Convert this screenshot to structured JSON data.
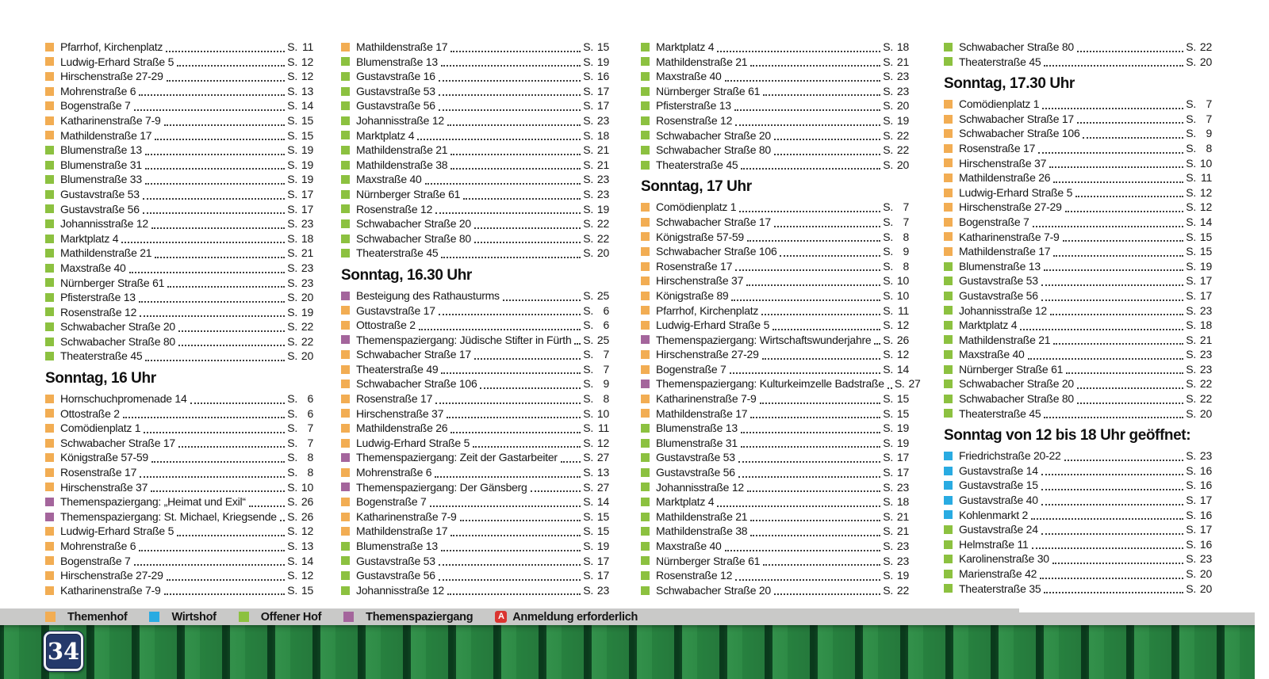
{
  "page_number": "34",
  "page_prefix": "S.",
  "category_colors": {
    "themenhof": "#f2ad53",
    "wirtshof": "#29abe2",
    "offener_hof": "#8cc140",
    "themenspaziergang": "#a4659c",
    "anmeldung": "#da3430"
  },
  "legend": [
    {
      "type": "o",
      "label": "Themenhof"
    },
    {
      "type": "b",
      "label": "Wirtshof"
    },
    {
      "type": "g",
      "label": "Offener Hof"
    },
    {
      "type": "p",
      "label": "Themenspaziergang"
    },
    {
      "type": "anmeldung",
      "icon_letter": "A",
      "label": "Anmeldung erforderlich"
    }
  ],
  "columns": [
    {
      "sections": [
        {
          "heading": "",
          "entries": [
            {
              "t": "o",
              "label": "Pfarrhof, Kirchenplatz",
              "page": "11"
            },
            {
              "t": "o",
              "label": "Ludwig-Erhard Straße 5",
              "page": "12"
            },
            {
              "t": "o",
              "label": "Hirschenstraße 27-29",
              "page": "12"
            },
            {
              "t": "o",
              "label": "Mohrenstraße 6",
              "page": "13"
            },
            {
              "t": "o",
              "label": "Bogenstraße 7",
              "page": "14"
            },
            {
              "t": "o",
              "label": "Katharinenstraße 7-9",
              "page": "15"
            },
            {
              "t": "o",
              "label": "Mathildenstraße 17",
              "page": "15"
            },
            {
              "t": "g",
              "label": "Blumenstraße 13",
              "page": "19"
            },
            {
              "t": "g",
              "label": "Blumenstraße 31",
              "page": "19"
            },
            {
              "t": "g",
              "label": "Blumenstraße 33",
              "page": "19"
            },
            {
              "t": "g",
              "label": "Gustavstraße 53",
              "page": "17"
            },
            {
              "t": "g",
              "label": "Gustavstraße 56",
              "page": "17"
            },
            {
              "t": "g",
              "label": "Johannisstraße 12",
              "page": "23"
            },
            {
              "t": "g",
              "label": "Marktplatz 4",
              "page": "18"
            },
            {
              "t": "g",
              "label": "Mathildenstraße 21",
              "page": "21"
            },
            {
              "t": "g",
              "label": "Maxstraße 40",
              "page": "23"
            },
            {
              "t": "g",
              "label": "Nürnberger Straße 61",
              "page": "23"
            },
            {
              "t": "g",
              "label": "Pfisterstraße 13",
              "page": "20"
            },
            {
              "t": "g",
              "label": "Rosenstraße 12",
              "page": "19"
            },
            {
              "t": "g",
              "label": "Schwabacher Straße 20",
              "page": "22"
            },
            {
              "t": "g",
              "label": "Schwabacher Straße 80",
              "page": "22"
            },
            {
              "t": "g",
              "label": "Theaterstraße 45",
              "page": "20"
            }
          ]
        },
        {
          "heading": "Sonntag, 16 Uhr",
          "entries": [
            {
              "t": "o",
              "label": "Hornschuchpromenade 14",
              "page": "6"
            },
            {
              "t": "o",
              "label": "Ottostraße 2",
              "page": "6"
            },
            {
              "t": "o",
              "label": "Comödienplatz 1",
              "page": "7"
            },
            {
              "t": "o",
              "label": "Schwabacher Straße 17",
              "page": "7"
            },
            {
              "t": "o",
              "label": "Königstraße 57-59",
              "page": "8"
            },
            {
              "t": "o",
              "label": "Rosenstraße 17",
              "page": "8"
            },
            {
              "t": "o",
              "label": "Hirschenstraße 37",
              "page": "10"
            },
            {
              "t": "p",
              "label": "Themenspaziergang: „Heimat und Exil“",
              "page": "26"
            },
            {
              "t": "p",
              "label": "Themenspaziergang: St. Michael, Kriegsende",
              "page": "26"
            },
            {
              "t": "o",
              "label": "Ludwig-Erhard Straße 5",
              "page": "12"
            },
            {
              "t": "o",
              "label": "Mohrenstraße 6",
              "page": "13"
            },
            {
              "t": "o",
              "label": "Bogenstraße 7",
              "page": "14"
            },
            {
              "t": "o",
              "label": "Hirschenstraße 27-29",
              "page": "12"
            },
            {
              "t": "o",
              "label": "Katharinenstraße 7-9",
              "page": "15"
            }
          ]
        }
      ]
    },
    {
      "sections": [
        {
          "heading": "",
          "entries": [
            {
              "t": "o",
              "label": "Mathildenstraße 17",
              "page": "15"
            },
            {
              "t": "g",
              "label": "Blumenstraße 13",
              "page": "19"
            },
            {
              "t": "g",
              "label": "Gustavstraße 16",
              "page": "16"
            },
            {
              "t": "g",
              "label": "Gustavstraße 53",
              "page": "17"
            },
            {
              "t": "g",
              "label": "Gustavstraße 56",
              "page": "17"
            },
            {
              "t": "g",
              "label": "Johannisstraße 12",
              "page": "23"
            },
            {
              "t": "g",
              "label": "Marktplatz 4",
              "page": "18"
            },
            {
              "t": "g",
              "label": "Mathildenstraße 21",
              "page": "21"
            },
            {
              "t": "g",
              "label": "Mathildenstraße 38",
              "page": "21"
            },
            {
              "t": "g",
              "label": "Maxstraße 40",
              "page": "23"
            },
            {
              "t": "g",
              "label": "Nürnberger Straße 61",
              "page": "23"
            },
            {
              "t": "g",
              "label": "Rosenstraße 12",
              "page": "19"
            },
            {
              "t": "g",
              "label": "Schwabacher Straße 20",
              "page": "22"
            },
            {
              "t": "g",
              "label": "Schwabacher Straße 80",
              "page": "22"
            },
            {
              "t": "g",
              "label": "Theaterstraße 45",
              "page": "20"
            }
          ]
        },
        {
          "heading": "Sonntag, 16.30 Uhr",
          "entries": [
            {
              "t": "p",
              "label": "Besteigung des Rathausturms",
              "page": "25"
            },
            {
              "t": "o",
              "label": "Gustavstraße 17",
              "page": "6"
            },
            {
              "t": "o",
              "label": "Ottostraße 2",
              "page": "6"
            },
            {
              "t": "p",
              "label": "Themenspaziergang: Jüdische Stifter in Fürth",
              "page": "25"
            },
            {
              "t": "o",
              "label": "Schwabacher Straße 17",
              "page": "7"
            },
            {
              "t": "o",
              "label": "Theaterstraße 49",
              "page": "7"
            },
            {
              "t": "o",
              "label": "Schwabacher Straße 106",
              "page": "9"
            },
            {
              "t": "o",
              "label": "Rosenstraße 17",
              "page": "8"
            },
            {
              "t": "o",
              "label": "Hirschenstraße 37",
              "page": "10"
            },
            {
              "t": "o",
              "label": "Mathildenstraße 26",
              "page": "11"
            },
            {
              "t": "o",
              "label": "Ludwig-Erhard Straße 5",
              "page": "12"
            },
            {
              "t": "p",
              "label": "Themenspaziergang: Zeit der Gastarbeiter",
              "page": "27"
            },
            {
              "t": "o",
              "label": "Mohrenstraße 6",
              "page": "13"
            },
            {
              "t": "p",
              "label": "Themenspaziergang: Der Gänsberg",
              "page": "27"
            },
            {
              "t": "o",
              "label": "Bogenstraße 7",
              "page": "14"
            },
            {
              "t": "o",
              "label": "Katharinenstraße 7-9",
              "page": "15"
            },
            {
              "t": "o",
              "label": "Mathildenstraße 17",
              "page": "15"
            },
            {
              "t": "g",
              "label": "Blumenstraße 13",
              "page": "19"
            },
            {
              "t": "g",
              "label": "Gustavstraße 53",
              "page": "17"
            },
            {
              "t": "g",
              "label": "Gustavstraße 56",
              "page": "17"
            },
            {
              "t": "g",
              "label": "Johannisstraße 12",
              "page": "23"
            }
          ]
        }
      ]
    },
    {
      "sections": [
        {
          "heading": "",
          "entries": [
            {
              "t": "g",
              "label": "Marktplatz 4",
              "page": "18"
            },
            {
              "t": "g",
              "label": "Mathildenstraße 21",
              "page": "21"
            },
            {
              "t": "g",
              "label": "Maxstraße 40",
              "page": "23"
            },
            {
              "t": "g",
              "label": "Nürnberger Straße 61",
              "page": "23"
            },
            {
              "t": "g",
              "label": "Pfisterstraße 13",
              "page": "20"
            },
            {
              "t": "g",
              "label": "Rosenstraße 12",
              "page": "19"
            },
            {
              "t": "g",
              "label": "Schwabacher Straße 20",
              "page": "22"
            },
            {
              "t": "g",
              "label": "Schwabacher Straße 80",
              "page": "22"
            },
            {
              "t": "g",
              "label": "Theaterstraße 45",
              "page": "20"
            }
          ]
        },
        {
          "heading": "Sonntag, 17 Uhr",
          "entries": [
            {
              "t": "o",
              "label": "Comödienplatz 1",
              "page": "7"
            },
            {
              "t": "o",
              "label": "Schwabacher Straße 17",
              "page": "7"
            },
            {
              "t": "o",
              "label": "Königstraße 57-59",
              "page": "8"
            },
            {
              "t": "o",
              "label": "Schwabacher Straße 106",
              "page": "9"
            },
            {
              "t": "o",
              "label": "Rosenstraße 17",
              "page": "8"
            },
            {
              "t": "o",
              "label": "Hirschenstraße 37",
              "page": "10"
            },
            {
              "t": "o",
              "label": "Königstraße 89",
              "page": "10"
            },
            {
              "t": "o",
              "label": "Pfarrhof, Kirchenplatz",
              "page": "11"
            },
            {
              "t": "o",
              "label": "Ludwig-Erhard Straße 5",
              "page": "12"
            },
            {
              "t": "p",
              "label": "Themenspaziergang: Wirtschaftswunderjahre",
              "page": "26"
            },
            {
              "t": "o",
              "label": "Hirschenstraße 27-29",
              "page": "12"
            },
            {
              "t": "o",
              "label": "Bogenstraße 7",
              "page": "14"
            },
            {
              "t": "p",
              "label": "Themenspaziergang: Kulturkeimzelle Badstraße",
              "page": "27"
            },
            {
              "t": "o",
              "label": "Katharinenstraße 7-9",
              "page": "15"
            },
            {
              "t": "o",
              "label": "Mathildenstraße 17",
              "page": "15"
            },
            {
              "t": "g",
              "label": "Blumenstraße 13",
              "page": "19"
            },
            {
              "t": "g",
              "label": "Blumenstraße 31",
              "page": "19"
            },
            {
              "t": "g",
              "label": "Gustavstraße 53",
              "page": "17"
            },
            {
              "t": "g",
              "label": "Gustavstraße 56",
              "page": "17"
            },
            {
              "t": "g",
              "label": "Johannisstraße 12",
              "page": "23"
            },
            {
              "t": "g",
              "label": "Marktplatz 4",
              "page": "18"
            },
            {
              "t": "g",
              "label": "Mathildenstraße 21",
              "page": "21"
            },
            {
              "t": "g",
              "label": "Mathildenstraße 38",
              "page": "21"
            },
            {
              "t": "g",
              "label": "Maxstraße 40",
              "page": "23"
            },
            {
              "t": "g",
              "label": "Nürnberger Straße 61",
              "page": "23"
            },
            {
              "t": "g",
              "label": "Rosenstraße 12",
              "page": "19"
            },
            {
              "t": "g",
              "label": "Schwabacher Straße 20",
              "page": "22"
            }
          ]
        }
      ]
    },
    {
      "sections": [
        {
          "heading": "",
          "entries": [
            {
              "t": "g",
              "label": "Schwabacher Straße 80",
              "page": "22"
            },
            {
              "t": "g",
              "label": "Theaterstraße 45",
              "page": "20"
            }
          ]
        },
        {
          "heading": "Sonntag, 17.30 Uhr",
          "entries": [
            {
              "t": "o",
              "label": "Comödienplatz 1",
              "page": "7"
            },
            {
              "t": "o",
              "label": "Schwabacher Straße 17",
              "page": "7"
            },
            {
              "t": "o",
              "label": "Schwabacher Straße 106",
              "page": "9"
            },
            {
              "t": "o",
              "label": "Rosenstraße 17",
              "page": "8"
            },
            {
              "t": "o",
              "label": "Hirschenstraße 37",
              "page": "10"
            },
            {
              "t": "o",
              "label": "Mathildenstraße 26",
              "page": "11"
            },
            {
              "t": "o",
              "label": "Ludwig-Erhard Straße 5",
              "page": "12"
            },
            {
              "t": "o",
              "label": "Hirschenstraße 27-29",
              "page": "12"
            },
            {
              "t": "o",
              "label": "Bogenstraße 7",
              "page": "14"
            },
            {
              "t": "o",
              "label": "Katharinenstraße 7-9",
              "page": "15"
            },
            {
              "t": "o",
              "label": "Mathildenstraße 17",
              "page": "15"
            },
            {
              "t": "g",
              "label": "Blumenstraße 13",
              "page": "19"
            },
            {
              "t": "g",
              "label": "Gustavstraße 53",
              "page": "17"
            },
            {
              "t": "g",
              "label": "Gustavstraße 56",
              "page": "17"
            },
            {
              "t": "g",
              "label": "Johannisstraße 12",
              "page": "23"
            },
            {
              "t": "g",
              "label": "Marktplatz 4",
              "page": "18"
            },
            {
              "t": "g",
              "label": "Mathildenstraße 21",
              "page": "21"
            },
            {
              "t": "g",
              "label": "Maxstraße 40",
              "page": "23"
            },
            {
              "t": "g",
              "label": "Nürnberger Straße 61",
              "page": "23"
            },
            {
              "t": "g",
              "label": "Schwabacher Straße 20",
              "page": "22"
            },
            {
              "t": "g",
              "label": "Schwabacher Straße 80",
              "page": "22"
            },
            {
              "t": "g",
              "label": "Theaterstraße 45",
              "page": "20"
            }
          ]
        },
        {
          "heading": "Sonntag von 12 bis 18 Uhr geöffnet:",
          "entries": [
            {
              "t": "b",
              "label": "Friedrichstraße 20-22",
              "page": "23"
            },
            {
              "t": "b",
              "label": "Gustavstraße 14",
              "page": "16"
            },
            {
              "t": "b",
              "label": "Gustavstraße 15",
              "page": "16"
            },
            {
              "t": "b",
              "label": "Gustavstraße 40",
              "page": "17"
            },
            {
              "t": "b",
              "label": "Kohlenmarkt 2",
              "page": "16"
            },
            {
              "t": "g",
              "label": "Gustavstraße 24",
              "page": "17"
            },
            {
              "t": "g",
              "label": "Helmstraße 11",
              "page": "16"
            },
            {
              "t": "g",
              "label": "Karolinenstraße 30",
              "page": "23"
            },
            {
              "t": "g",
              "label": "Marienstraße 42",
              "page": "20"
            },
            {
              "t": "g",
              "label": "Theaterstraße 35",
              "page": "20"
            }
          ]
        }
      ]
    }
  ]
}
